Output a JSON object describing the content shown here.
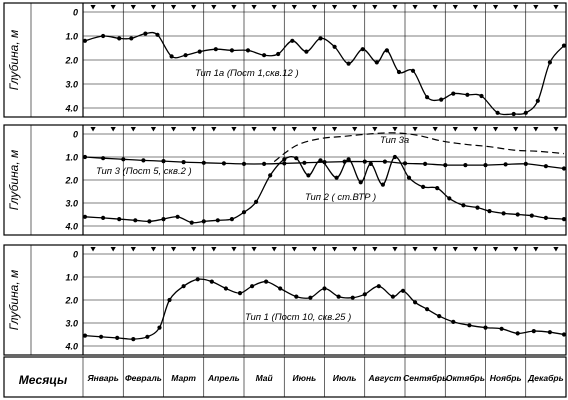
{
  "months_title": "Месяцы",
  "months": [
    "Январь",
    "Февраль",
    "Март",
    "Апрель",
    "Май",
    "Июнь",
    "Июль",
    "Август",
    "Сентябрь",
    "Октябрь",
    "Ноябрь",
    "Декабрь"
  ],
  "chart_data": [
    {
      "type": "line",
      "ylabel": "Глубина,  м",
      "yticks": [
        "0",
        "1.0",
        "2.0",
        "3.0",
        "4.0"
      ],
      "ylim": [
        0,
        4.2
      ],
      "y_inverted": true,
      "xlim": [
        0,
        12
      ],
      "x_unit": "month (0 = start of January, 12 = end of December)",
      "series": [
        {
          "label": "Тип 1а (Пост 1,скв.12 )",
          "x": [
            0.05,
            0.5,
            0.9,
            1.2,
            1.55,
            1.85,
            2.2,
            2.55,
            2.9,
            3.3,
            3.7,
            4.1,
            4.5,
            4.85,
            5.2,
            5.55,
            5.9,
            6.25,
            6.6,
            6.95,
            7.3,
            7.55,
            7.85,
            8.2,
            8.55,
            8.9,
            9.2,
            9.55,
            9.9,
            10.3,
            10.7,
            11.0,
            11.3,
            11.6,
            11.95
          ],
          "y": [
            1.2,
            1.0,
            1.1,
            1.1,
            0.9,
            0.95,
            1.85,
            1.8,
            1.65,
            1.55,
            1.6,
            1.6,
            1.8,
            1.75,
            1.2,
            1.65,
            1.1,
            1.45,
            2.15,
            1.55,
            2.1,
            1.6,
            2.5,
            2.45,
            3.55,
            3.65,
            3.4,
            3.45,
            3.5,
            4.2,
            4.25,
            4.2,
            3.7,
            2.1,
            1.4
          ]
        }
      ]
    },
    {
      "type": "line",
      "ylabel": "Глубина,  м",
      "yticks": [
        "0",
        "1.0",
        "2.0",
        "3.0",
        "4.0"
      ],
      "ylim": [
        0,
        4.2
      ],
      "y_inverted": true,
      "xlim": [
        0,
        12
      ],
      "series": [
        {
          "label": "Тип 3 (Пост 5, скв.2 )",
          "style": "solid",
          "x": [
            0.05,
            0.5,
            1.0,
            1.5,
            2.0,
            2.5,
            3.0,
            3.5,
            4.0,
            4.5,
            5.0,
            5.5,
            6.0,
            6.5,
            7.0,
            7.5,
            8.0,
            8.5,
            9.0,
            9.5,
            10.0,
            10.5,
            11.0,
            11.5,
            11.95
          ],
          "y": [
            1.0,
            1.05,
            1.1,
            1.15,
            1.18,
            1.22,
            1.25,
            1.28,
            1.3,
            1.3,
            1.28,
            1.25,
            1.22,
            1.2,
            1.2,
            1.2,
            1.28,
            1.3,
            1.35,
            1.35,
            1.35,
            1.32,
            1.3,
            1.4,
            1.5
          ]
        },
        {
          "label": "Тип 2 ( ст.ВТР )",
          "style": "solid",
          "x": [
            0.05,
            0.5,
            0.9,
            1.3,
            1.65,
            2.0,
            2.35,
            2.7,
            3.0,
            3.35,
            3.7,
            4.0,
            4.3,
            4.65,
            5.0,
            5.3,
            5.6,
            5.9,
            6.3,
            6.6,
            6.9,
            7.15,
            7.45,
            7.75,
            8.1,
            8.45,
            8.8,
            9.1,
            9.45,
            9.8,
            10.1,
            10.45,
            10.8,
            11.15,
            11.5,
            11.95
          ],
          "y": [
            3.6,
            3.65,
            3.7,
            3.75,
            3.8,
            3.7,
            3.6,
            3.85,
            3.8,
            3.75,
            3.7,
            3.4,
            2.95,
            1.8,
            1.1,
            1.05,
            1.8,
            1.15,
            1.9,
            1.1,
            2.1,
            1.3,
            2.2,
            1.0,
            1.9,
            2.3,
            2.35,
            2.8,
            3.1,
            3.2,
            3.35,
            3.45,
            3.5,
            3.55,
            3.65,
            3.7
          ]
        },
        {
          "label": "Тип 3а",
          "style": "dashed",
          "x": [
            4.75,
            5.3,
            5.9,
            6.5,
            7.1,
            7.7,
            8.3,
            8.9,
            9.5,
            10.1,
            10.7,
            11.3,
            11.95
          ],
          "y": [
            1.2,
            0.5,
            0.2,
            0.1,
            0.0,
            -0.05,
            0.05,
            0.3,
            0.45,
            0.55,
            0.7,
            0.75,
            0.85
          ]
        }
      ]
    },
    {
      "type": "line",
      "ylabel": "Глубина,  м",
      "yticks": [
        "0",
        "1.0",
        "2.0",
        "3.0",
        "4.0"
      ],
      "ylim": [
        0,
        4.2
      ],
      "y_inverted": true,
      "xlim": [
        0,
        12
      ],
      "series": [
        {
          "label": "Тип 1 (Пост 10, скв.25 )",
          "x": [
            0.05,
            0.45,
            0.85,
            1.25,
            1.6,
            1.9,
            2.15,
            2.5,
            2.85,
            3.2,
            3.55,
            3.9,
            4.2,
            4.55,
            4.9,
            5.3,
            5.65,
            6.0,
            6.35,
            6.7,
            7.0,
            7.35,
            7.7,
            7.95,
            8.25,
            8.55,
            8.85,
            9.2,
            9.6,
            10.0,
            10.4,
            10.8,
            11.2,
            11.6,
            11.95
          ],
          "y": [
            3.55,
            3.6,
            3.65,
            3.7,
            3.6,
            3.2,
            2.0,
            1.4,
            1.1,
            1.2,
            1.5,
            1.7,
            1.4,
            1.2,
            1.5,
            1.85,
            1.9,
            1.5,
            1.85,
            1.9,
            1.75,
            1.4,
            1.85,
            1.6,
            2.1,
            2.4,
            2.7,
            2.95,
            3.1,
            3.2,
            3.25,
            3.45,
            3.35,
            3.4,
            3.5
          ]
        }
      ]
    }
  ]
}
